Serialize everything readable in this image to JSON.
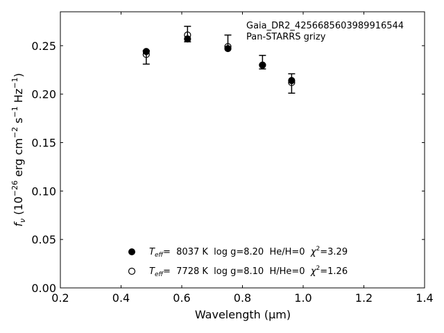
{
  "chart_data": {
    "type": "scatter",
    "annotation": [
      "Gaia_DR2_4256685603989916544",
      "Pan-STARRS grizy"
    ],
    "xlabel": "Wavelength (μm)",
    "ylabel": {
      "main": "f",
      "sub": "ν",
      "rest": " (10",
      "exp": "−26",
      "units": " erg cm",
      "exp2": "−2",
      "units2": " s",
      "exp3": "−1",
      "units3": " Hz",
      "exp4": "−1",
      "close": ")"
    },
    "xlim": [
      0.2,
      1.4
    ],
    "ylim": [
      0.0,
      0.285
    ],
    "xticks": [
      {
        "v": 0.2,
        "label": "0.2"
      },
      {
        "v": 0.4,
        "label": "0.4"
      },
      {
        "v": 0.6,
        "label": "0.6"
      },
      {
        "v": 0.8,
        "label": "0.8"
      },
      {
        "v": 1.0,
        "label": "1.0"
      },
      {
        "v": 1.2,
        "label": "1.2"
      },
      {
        "v": 1.4,
        "label": "1.4"
      }
    ],
    "yticks": [
      {
        "v": 0.0,
        "label": "0.00"
      },
      {
        "v": 0.05,
        "label": "0.05"
      },
      {
        "v": 0.1,
        "label": "0.10"
      },
      {
        "v": 0.15,
        "label": "0.15"
      },
      {
        "v": 0.2,
        "label": "0.20"
      },
      {
        "v": 0.25,
        "label": "0.25"
      }
    ],
    "grid": false,
    "observed": {
      "x": [
        0.483,
        0.619,
        0.752,
        0.866,
        0.962
      ],
      "y": [
        0.238,
        0.262,
        0.254,
        0.233,
        0.211
      ],
      "err": [
        0.007,
        0.008,
        0.007,
        0.007,
        0.01
      ]
    },
    "series": [
      {
        "marker": "filled-circle",
        "x": [
          0.483,
          0.619,
          0.752,
          0.866,
          0.962
        ],
        "y": [
          0.244,
          0.257,
          0.247,
          0.23,
          0.214
        ],
        "legend": {
          "teff_label": "T",
          "teff_sub": "eff",
          "text": "=  8037 K  log g=8.20  He/H=0  ",
          "chi": "χ",
          "chi_exp": "2",
          "chi_val": "=3.29"
        }
      },
      {
        "marker": "open-circle",
        "x": [
          0.483,
          0.619,
          0.752,
          0.866,
          0.962
        ],
        "y": [
          0.241,
          0.261,
          0.249,
          0.23,
          0.212
        ],
        "legend": {
          "teff_label": "T",
          "teff_sub": "eff",
          "text": "=  7728 K  log g=8.10  H/He=0  ",
          "chi": "χ",
          "chi_exp": "2",
          "chi_val": "=1.26"
        }
      }
    ],
    "legend_position": "lower-center"
  }
}
